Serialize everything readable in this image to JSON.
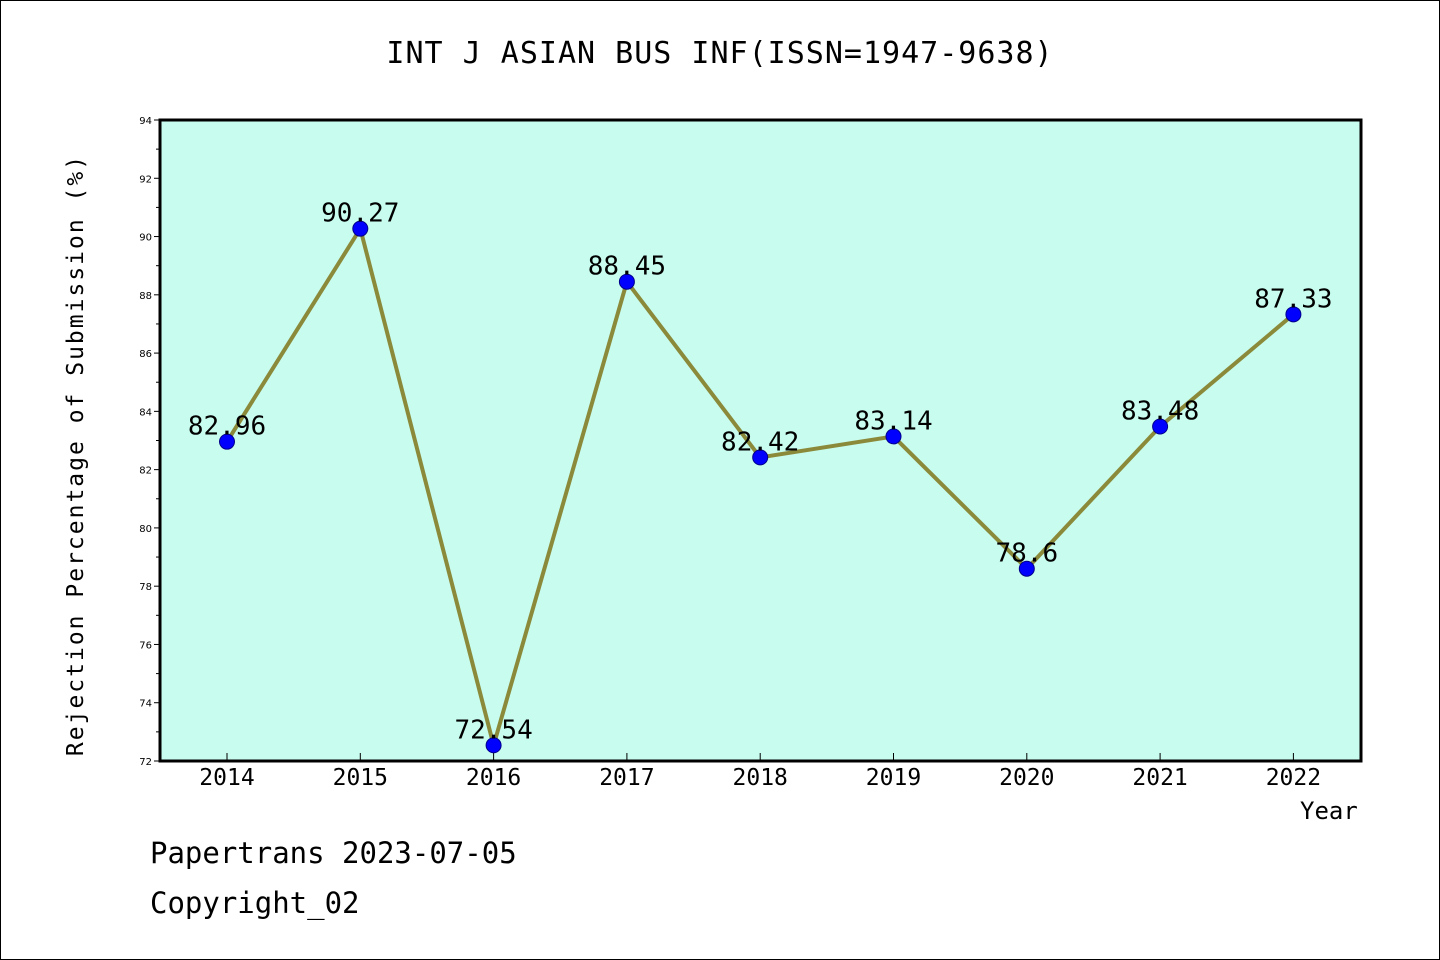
{
  "chart_data": {
    "type": "line",
    "title": "INT J ASIAN BUS INF(ISSN=1947-9638)",
    "xlabel": "Year",
    "ylabel": "Rejection Percentage of Submission (%)",
    "categories": [
      "2014",
      "2015",
      "2016",
      "2017",
      "2018",
      "2019",
      "2020",
      "2021",
      "2022"
    ],
    "series": [
      {
        "values": [
          82.96,
          90.27,
          72.54,
          88.45,
          82.42,
          83.14,
          78.6,
          83.48,
          87.33
        ],
        "data_labels": [
          "82.96",
          "90.27",
          "72.54",
          "88.45",
          "82.42",
          "83.14",
          "78.6",
          "83.48",
          "87.33"
        ]
      }
    ],
    "ylim": [
      72,
      94
    ],
    "yticks": [
      "72",
      "74",
      "76",
      "78",
      "80",
      "82",
      "84",
      "86",
      "88",
      "90",
      "92",
      "94"
    ],
    "grid": false,
    "colors": {
      "plot_background": "#c8fcee",
      "line": "#8b8a3a",
      "marker": "#0000ff"
    }
  },
  "footer": {
    "credit": "Papertrans 2023-07-05",
    "copyright": "Copyright_02"
  }
}
